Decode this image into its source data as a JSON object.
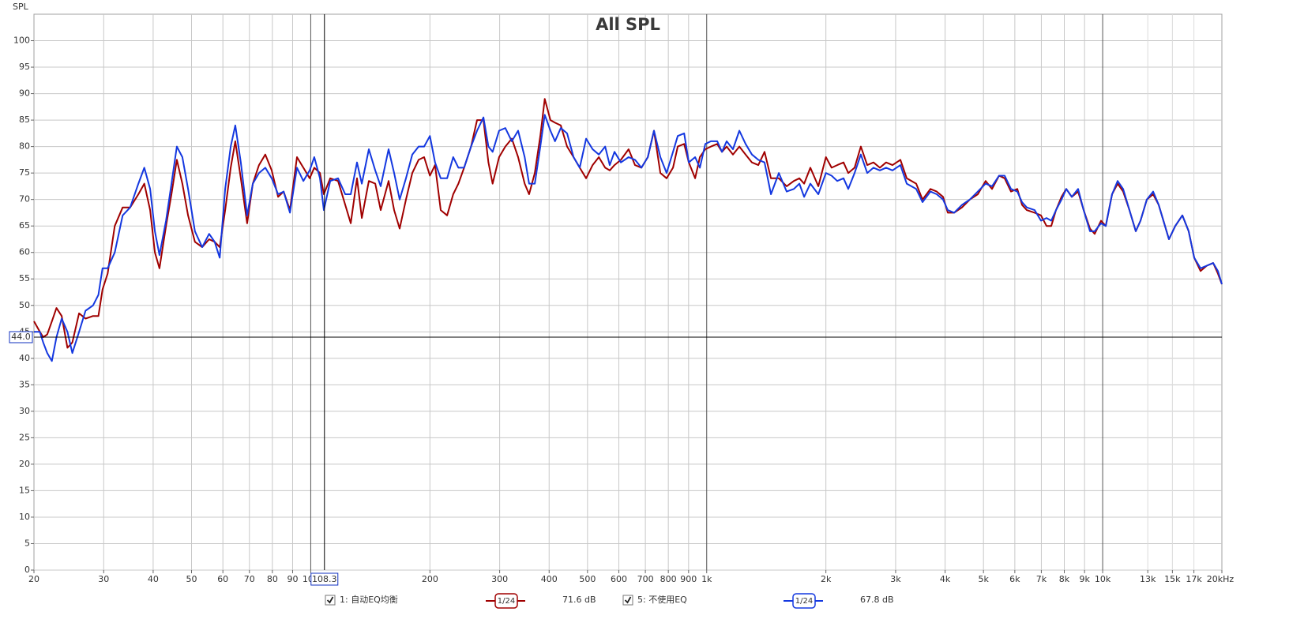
{
  "chart_data": {
    "type": "line",
    "title": "All SPL",
    "ylabel": "SPL",
    "xscale": "log",
    "xlim": [
      20,
      20000
    ],
    "ylim": [
      0,
      105
    ],
    "xticks": [
      20,
      30,
      40,
      50,
      60,
      70,
      80,
      90,
      100,
      200,
      300,
      400,
      500,
      600,
      700,
      800,
      900,
      {
        "value": 1000,
        "label": "1k"
      },
      {
        "value": 2000,
        "label": "2k"
      },
      {
        "value": 3000,
        "label": "3k"
      },
      {
        "value": 4000,
        "label": "4k"
      },
      {
        "value": 5000,
        "label": "5k"
      },
      {
        "value": 6000,
        "label": "6k"
      },
      {
        "value": 7000,
        "label": "7k"
      },
      {
        "value": 8000,
        "label": "8k"
      },
      {
        "value": 9000,
        "label": "9k"
      },
      {
        "value": 10000,
        "label": "10k"
      },
      {
        "value": 20000,
        "label": "20kHz"
      }
    ],
    "xticks_faded": [
      {
        "value": 13000,
        "label": "13k"
      },
      {
        "value": 15000,
        "label": "15k"
      },
      {
        "value": 17000,
        "label": "17k"
      }
    ],
    "yticks": [
      0,
      5,
      10,
      15,
      20,
      25,
      30,
      35,
      40,
      45,
      50,
      55,
      60,
      65,
      70,
      75,
      80,
      85,
      90,
      95,
      100
    ],
    "grid": true,
    "cursor": {
      "x": 108.3,
      "y": {
        "value": 44,
        "label": "44.0"
      }
    },
    "x": [
      20,
      20.7,
      21.1,
      21.6,
      22.2,
      22.8,
      23.5,
      24.3,
      25,
      26,
      27,
      28.2,
      29.1,
      29.8,
      30.7,
      32,
      33.5,
      35,
      36.7,
      38,
      39.3,
      40.4,
      41.5,
      43.1,
      44.5,
      45.9,
      47.4,
      49,
      51,
      53.2,
      55.4,
      57.2,
      58.9,
      60.8,
      62.8,
      64.5,
      66.6,
      69.1,
      71.4,
      74,
      76.8,
      79.7,
      82.7,
      85.4,
      88.6,
      92.3,
      95.8,
      99.4,
      102.1,
      105.5,
      107.9,
      112,
      117.2,
      122.2,
      126.2,
      130.9,
      134.6,
      140.2,
      145.5,
      150.2,
      157.3,
      162.4,
      167.7,
      174,
      180.5,
      187.3,
      193.4,
      200,
      206,
      213,
      221,
      229,
      236,
      244,
      254,
      263,
      273,
      281,
      288,
      299,
      310,
      322,
      334,
      347,
      356,
      368,
      380,
      390,
      403,
      414,
      428,
      444,
      461,
      478,
      496,
      515,
      534,
      554,
      569,
      585,
      607,
      635,
      659,
      684,
      710,
      736,
      764,
      792,
      822,
      845,
      877,
      901,
      935,
      961,
      992,
      1025,
      1063,
      1093,
      1123,
      1165,
      1209,
      1254,
      1301,
      1350,
      1400,
      1453,
      1521,
      1592,
      1660,
      1714,
      1762,
      1827,
      1914,
      2000,
      2068,
      2136,
      2216,
      2278,
      2363,
      2451,
      2543,
      2638,
      2737,
      2839,
      2946,
      3085,
      3200,
      3381,
      3508,
      3672,
      3810,
      3952,
      4063,
      4215,
      4413,
      4619,
      4837,
      5064,
      5254,
      5475,
      5655,
      5868,
      6087,
      6257,
      6432,
      6735,
      6987,
      7214,
      7416,
      7624,
      7871,
      8091,
      8357,
      8669,
      8953,
      9287,
      9547,
      9904,
      10180,
      10562,
      10906,
      11263,
      11685,
      12121,
      12461,
      12926,
      13411,
      13850,
      14301,
      14702,
      15252,
      15894,
      16490,
      17028,
      17666,
      18324,
      19012,
      19545,
      20000
    ],
    "series": [
      {
        "name": "1: 自动EQ均衡",
        "color": "#a00000",
        "visible": true,
        "smoothing": "1/24",
        "level": "71.6 dB",
        "values": [
          47,
          45,
          44,
          44.5,
          47,
          49.5,
          48,
          42,
          43,
          48.5,
          47.5,
          48,
          48,
          53,
          56,
          65,
          68.5,
          68.5,
          71,
          73,
          68,
          60,
          57,
          65,
          71,
          77.5,
          73,
          67,
          62,
          61,
          62.5,
          62,
          61,
          68,
          76,
          81,
          74,
          65.5,
          73,
          76.5,
          78.5,
          75.5,
          70.5,
          71.5,
          68,
          78,
          76,
          74,
          76,
          75,
          71,
          74,
          73.5,
          69,
          65.5,
          74,
          66.5,
          73.5,
          73,
          68,
          73.5,
          68,
          64.5,
          70,
          75,
          77.5,
          78,
          74.5,
          76.5,
          68,
          67,
          71,
          73,
          76,
          80,
          85,
          85,
          77,
          73,
          78,
          80,
          81.5,
          78,
          73,
          71,
          75,
          82,
          89,
          85,
          84.5,
          84,
          80,
          78,
          76,
          74,
          76.5,
          78,
          76,
          75.5,
          76.5,
          77.5,
          79.5,
          76.5,
          76,
          78,
          83,
          75,
          74,
          76,
          80,
          80.5,
          77,
          74,
          78,
          79.5,
          80,
          80.5,
          79,
          80,
          78.5,
          80,
          78.5,
          77,
          76.5,
          79,
          74,
          74,
          72.5,
          73.5,
          74,
          73,
          76,
          72.5,
          78,
          76,
          76.5,
          77,
          75,
          76,
          80,
          76.5,
          77,
          76,
          77,
          76.5,
          77.5,
          74,
          73,
          70,
          72,
          71.5,
          70.5,
          67.5,
          67.5,
          68.5,
          70,
          71,
          73.5,
          72,
          74.5,
          74,
          71.5,
          72,
          69,
          68,
          67.5,
          67,
          65,
          65,
          68,
          70.5,
          72,
          70.5,
          71.5,
          68,
          64.5,
          63.5,
          66,
          65,
          71,
          73,
          71.5,
          68,
          64,
          66,
          70,
          71,
          69,
          65.5,
          62.5,
          65,
          67,
          64,
          59,
          56.5,
          57.5,
          58,
          56,
          54
        ]
      },
      {
        "name": "5: 不使用EQ",
        "color": "#1438e0",
        "visible": true,
        "smoothing": "1/24",
        "level": "67.8 dB",
        "values": [
          45,
          45,
          43,
          41,
          39.5,
          44,
          47.5,
          45,
          41,
          45,
          49,
          50,
          52,
          57,
          57,
          60,
          67,
          68.5,
          73,
          76,
          72,
          64,
          59.5,
          66,
          73,
          80,
          78,
          72,
          64,
          61,
          63.5,
          62,
          59,
          72,
          80,
          84,
          77,
          67,
          73,
          75,
          76,
          74,
          71,
          71.5,
          67.5,
          76,
          73.5,
          75.5,
          78,
          74,
          68,
          73.5,
          74,
          71,
          71,
          77,
          73,
          79.5,
          75.5,
          72.5,
          79.5,
          75,
          70,
          74,
          78.5,
          80,
          80,
          82,
          77,
          74,
          74,
          78,
          76,
          76,
          80,
          83,
          85.5,
          80,
          79,
          83,
          83.5,
          81,
          83,
          78,
          73,
          73,
          80,
          86,
          83,
          81,
          83.5,
          82.5,
          78,
          76,
          81.5,
          79.5,
          78.5,
          80,
          76.5,
          79,
          77,
          78,
          77.5,
          76,
          78,
          83,
          78,
          75,
          79,
          82,
          82.5,
          77,
          78,
          76,
          80.5,
          81,
          81,
          79,
          81,
          79.5,
          83,
          80.5,
          78.5,
          77.5,
          77,
          71,
          75,
          71.5,
          72,
          73,
          70.5,
          73,
          71,
          75,
          74.5,
          73.5,
          74,
          72,
          75,
          78.5,
          75,
          76,
          75.5,
          76,
          75.5,
          76.5,
          73,
          72,
          69.5,
          71.5,
          71,
          70,
          68,
          67.5,
          69,
          70,
          71.5,
          73,
          72.5,
          74.5,
          74.5,
          72,
          71.5,
          69.5,
          68.5,
          68,
          66,
          66.5,
          66,
          68,
          70,
          72,
          70.5,
          72,
          68,
          64,
          64,
          65.5,
          65,
          71,
          73.5,
          72,
          68,
          64,
          66,
          70,
          71.5,
          69,
          65.5,
          62.5,
          65,
          67,
          64,
          59,
          57,
          57.5,
          58,
          56.5,
          54
        ]
      }
    ]
  }
}
